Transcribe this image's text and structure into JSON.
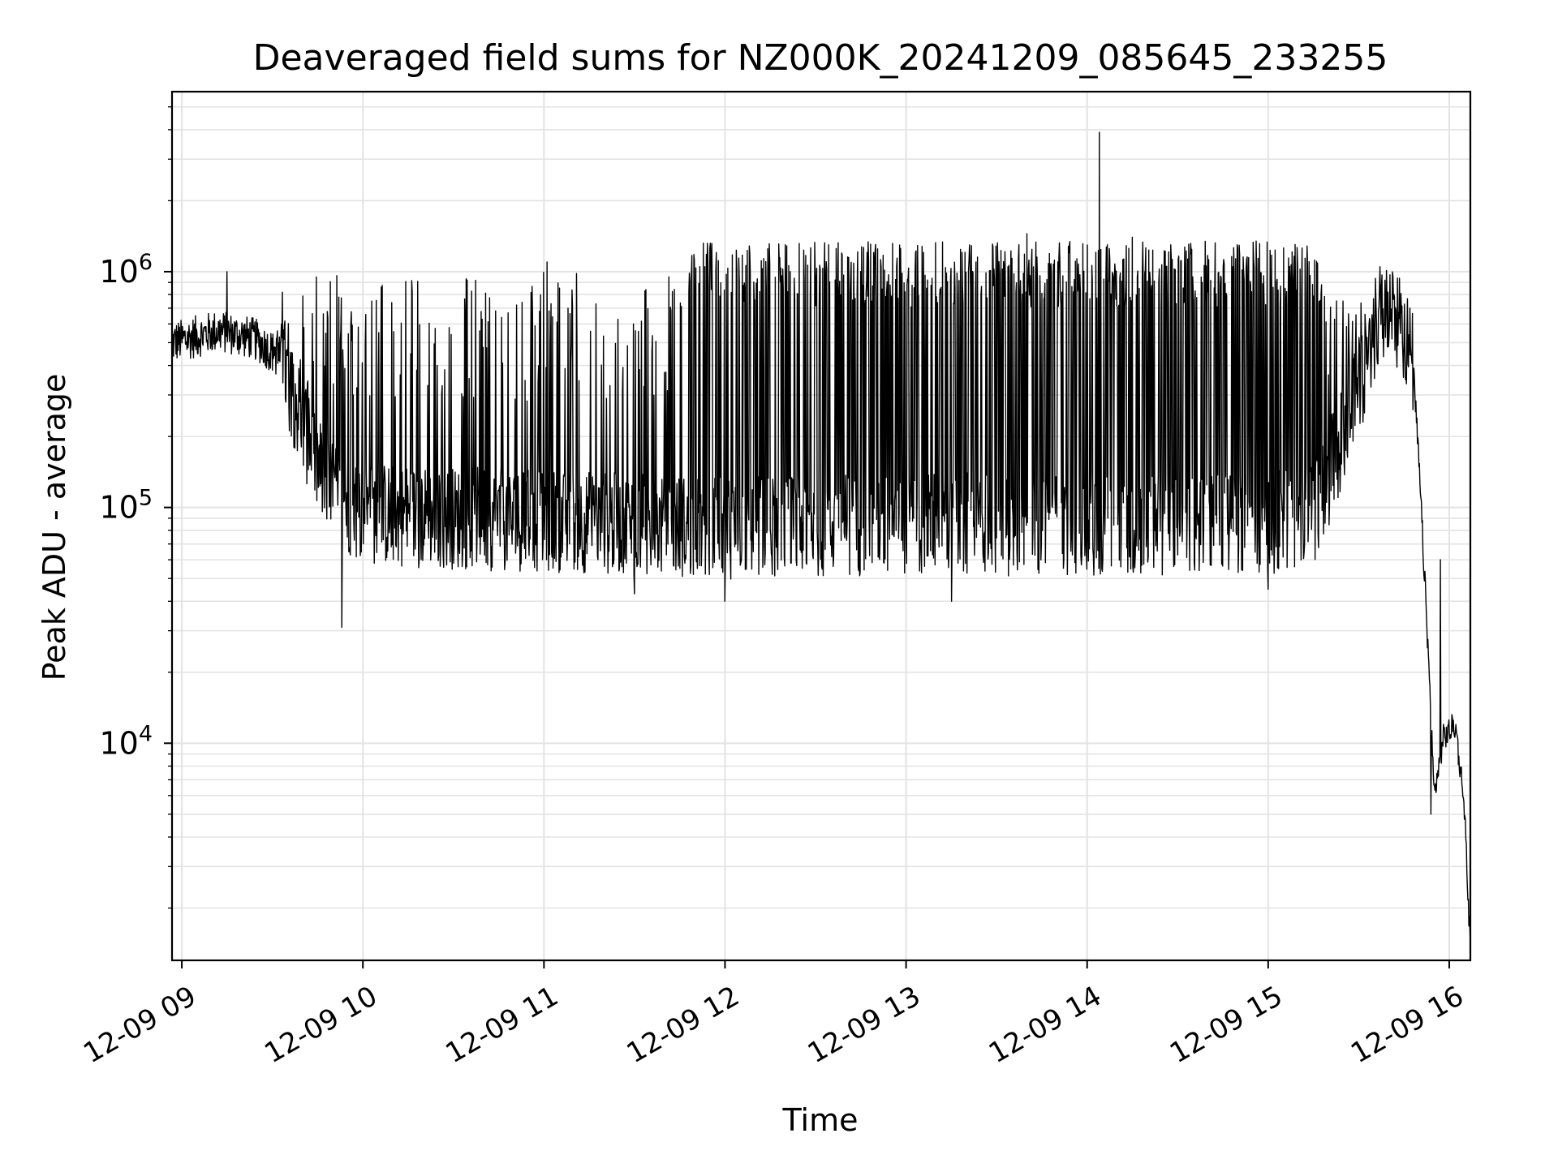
{
  "chart_data": {
    "type": "line",
    "title": "Deaveraged field sums for NZ000K_20241209_085645_233255",
    "xlabel": "Time",
    "ylabel": "Peak ADU - average",
    "x_tick_labels": [
      "12-09 09",
      "12-09 10",
      "12-09 11",
      "12-09 12",
      "12-09 13",
      "12-09 14",
      "12-09 15",
      "12-09 16"
    ],
    "x_tick_hours": [
      9,
      10,
      11,
      12,
      13,
      14,
      15,
      16
    ],
    "y_tick_exponents": [
      4,
      5,
      6
    ],
    "y_tick_base": "10",
    "xlim": [
      "2024-12-09 08:56:45",
      "2024-12-09 16:07:00"
    ],
    "ylim": [
      1200,
      5800000
    ],
    "y_scale": "log",
    "grid": true,
    "series": [
      {
        "color": "#000000",
        "points": [
          [
            "2024-12-09 08:56:45",
            500000
          ],
          [
            "2024-12-09 09:12:00",
            560000
          ],
          [
            "2024-12-09 09:24:00",
            520000
          ],
          [
            "2024-12-09 09:33:00",
            430000
          ],
          [
            "2024-12-09 09:40:00",
            230000
          ],
          [
            "2024-12-09 09:48:00",
            120000
          ],
          [
            "2024-12-09 10:00:00",
            95000
          ],
          [
            "2024-12-09 10:30:00",
            90000
          ],
          [
            "2024-12-09 11:00:00",
            88000
          ],
          [
            "2024-12-09 11:30:00",
            85000
          ],
          [
            "2024-12-09 12:00:00",
            82000
          ],
          [
            "2024-12-09 12:30:00",
            85000
          ],
          [
            "2024-12-09 13:00:00",
            85000
          ],
          [
            "2024-12-09 13:30:00",
            85000
          ],
          [
            "2024-12-09 14:00:00",
            85000
          ],
          [
            "2024-12-09 14:30:00",
            85000
          ],
          [
            "2024-12-09 15:00:00",
            85000
          ],
          [
            "2024-12-09 15:15:00",
            95000
          ],
          [
            "2024-12-09 15:25:00",
            200000
          ],
          [
            "2024-12-09 15:36:00",
            600000
          ],
          [
            "2024-12-09 15:44:00",
            650000
          ],
          [
            "2024-12-09 15:48:00",
            400000
          ],
          [
            "2024-12-09 15:50:00",
            150000
          ],
          [
            "2024-12-09 15:53:00",
            25000
          ],
          [
            "2024-12-09 15:55:00",
            6000
          ],
          [
            "2024-12-09 15:58:00",
            10500
          ],
          [
            "2024-12-09 16:02:00",
            12000
          ],
          [
            "2024-12-09 16:05:00",
            5500
          ],
          [
            "2024-12-09 16:07:00",
            1300
          ]
        ],
        "spikes": [
          [
            "2024-12-09 09:15:00",
            1000000
          ],
          [
            "2024-12-09 09:52:00",
            780000
          ],
          [
            "2024-12-09 09:53:00",
            31000
          ],
          [
            "2024-12-09 11:01:00",
            1100000
          ],
          [
            "2024-12-09 11:30:00",
            43000
          ],
          [
            "2024-12-09 12:00:00",
            40000
          ],
          [
            "2024-12-09 12:20:00",
            1300000
          ],
          [
            "2024-12-09 13:15:00",
            40000
          ],
          [
            "2024-12-09 13:40:00",
            1450000
          ],
          [
            "2024-12-09 14:04:00",
            3900000
          ],
          [
            "2024-12-09 14:15:00",
            1400000
          ],
          [
            "2024-12-09 15:00:00",
            45000
          ],
          [
            "2024-12-09 15:37:00",
            1050000
          ],
          [
            "2024-12-09 15:54:00",
            5000
          ],
          [
            "2024-12-09 15:57:00",
            60000
          ]
        ]
      }
    ]
  }
}
